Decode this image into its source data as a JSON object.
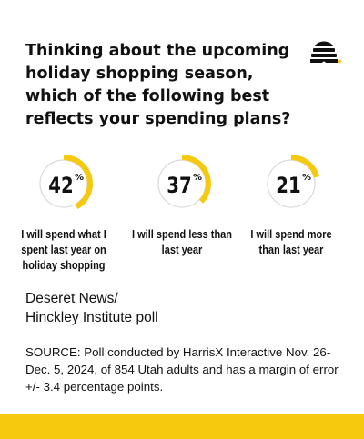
{
  "headline": "Thinking about the upcoming holiday shopping season, which of the following best reflects your spending plans?",
  "chart_data": {
    "type": "pie",
    "items": [
      {
        "value": 42,
        "unit": "%",
        "label": "I will spend what I spent last year on holiday shopping"
      },
      {
        "value": 37,
        "unit": "%",
        "label": "I will spend less than last year"
      },
      {
        "value": 21,
        "unit": "%",
        "label": "I will spend more than last year"
      }
    ],
    "colors": {
      "accent": "#f6c90e",
      "ring": "#d9d9d9",
      "text": "#111111"
    }
  },
  "credit": {
    "line1": "Deseret News/",
    "line2": "Hinckley Institute poll"
  },
  "source": "SOURCE: Poll conducted by HarrisX Interactive Nov. 26-Dec. 5, 2024, of 854 Utah adults and has a margin of error +/- 3.4 percentage points.",
  "brand": {
    "logo_icon": "beehive-icon",
    "accent": "#f6c90e"
  }
}
